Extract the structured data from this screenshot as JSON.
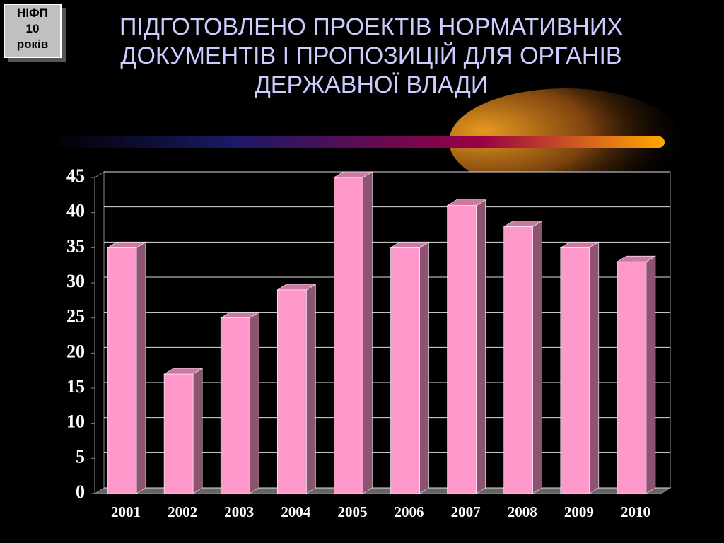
{
  "badge": [
    "НІФП",
    "10",
    "років"
  ],
  "chart_data": {
    "type": "bar3d",
    "title": "ПІДГОТОВЛЕНО ПРОЕКТІВ НОРМАТИВНИХ\nДОКУМЕНТІВ І ПРОПОЗИЦІЙ ДЛЯ ОРГАНІВ\nДЕРЖАВНОЇ ВЛАДИ",
    "categories": [
      "2001",
      "2002",
      "2003",
      "2004",
      "2005",
      "2006",
      "2007",
      "2008",
      "2009",
      "2010"
    ],
    "values": [
      35,
      17,
      25,
      29,
      45,
      35,
      41,
      38,
      35,
      33
    ],
    "color": "#ff99cc",
    "ylim": [
      0,
      45
    ],
    "yticks": [
      0,
      5,
      10,
      15,
      20,
      25,
      30,
      35,
      40,
      45
    ],
    "grid": true
  }
}
